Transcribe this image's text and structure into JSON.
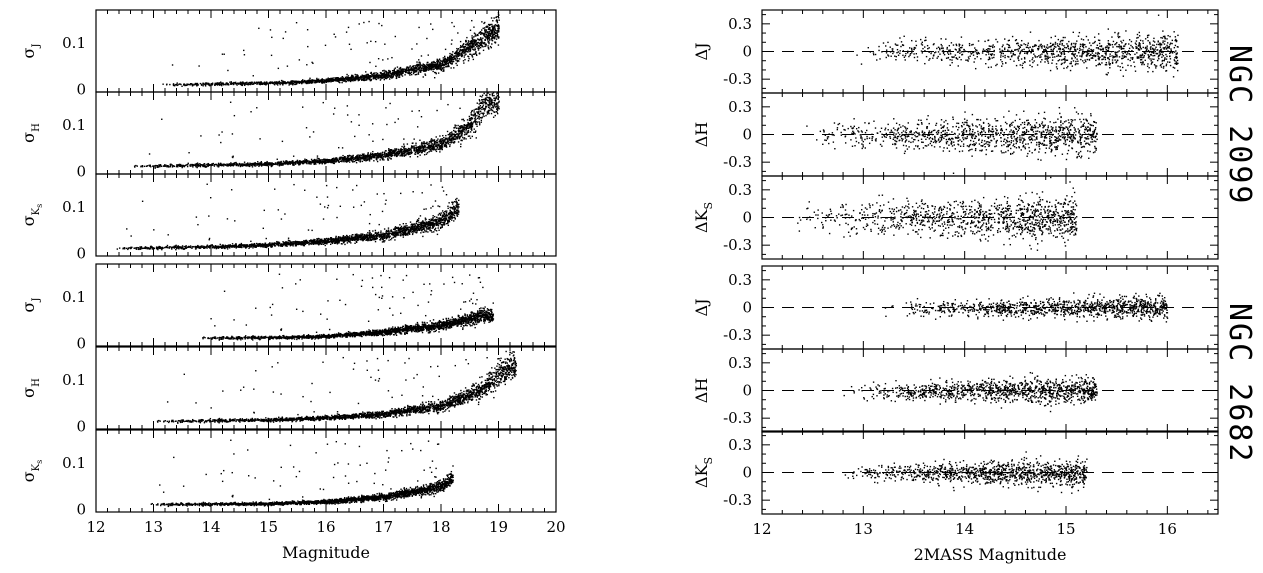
{
  "chart_data": [
    {
      "type": "scatter",
      "id": "left-figure",
      "xlabel": "Magnitude",
      "xlim": [
        12,
        20
      ],
      "xticks": [
        "12",
        "13",
        "14",
        "15",
        "16",
        "17",
        "18",
        "19",
        "20"
      ],
      "panels": [
        {
          "cluster": "NGC 2099",
          "ylabel": "σJ",
          "sub": "J",
          "yticks": [
            "0",
            "0.1"
          ],
          "ylim": [
            -0.005,
            0.17
          ],
          "series": {
            "mag_range": [
              13.1,
              19.0
            ],
            "floor": 0.012,
            "rise_at": 17.8,
            "curve": [
              [
                13.1,
                0.012
              ],
              [
                15,
                0.015
              ],
              [
                16,
                0.02
              ],
              [
                17,
                0.032
              ],
              [
                18,
                0.055
              ],
              [
                18.6,
                0.1
              ],
              [
                19.0,
                0.13
              ]
            ]
          }
        },
        {
          "cluster": "NGC 2099",
          "ylabel": "σH",
          "sub": "H",
          "yticks": [
            "0",
            "0.1"
          ],
          "ylim": [
            -0.005,
            0.17
          ],
          "series": {
            "mag_range": [
              12.6,
              19.0
            ],
            "floor": 0.012,
            "curve": [
              [
                12.6,
                0.012
              ],
              [
                15,
                0.018
              ],
              [
                16,
                0.024
              ],
              [
                17,
                0.036
              ],
              [
                18,
                0.06
              ],
              [
                18.5,
                0.1
              ],
              [
                18.8,
                0.15
              ]
            ]
          }
        },
        {
          "cluster": "NGC 2099",
          "ylabel": "σKs",
          "sub": "Ks",
          "yticks": [
            "0",
            "0.1"
          ],
          "ylim": [
            -0.005,
            0.17
          ],
          "series": {
            "mag_range": [
              12.3,
              18.3
            ],
            "floor": 0.012,
            "curve": [
              [
                12.3,
                0.012
              ],
              [
                14,
                0.016
              ],
              [
                15,
                0.02
              ],
              [
                16,
                0.028
              ],
              [
                17,
                0.04
              ],
              [
                18,
                0.07
              ],
              [
                18.3,
                0.1
              ]
            ]
          }
        },
        {
          "cluster": "NGC 2682",
          "ylabel": "σJ",
          "sub": "J",
          "yticks": [
            "0",
            "0.1"
          ],
          "ylim": [
            -0.005,
            0.17
          ],
          "series": {
            "mag_range": [
              13.8,
              18.9
            ],
            "floor": 0.013,
            "curve": [
              [
                13.8,
                0.013
              ],
              [
                15,
                0.014
              ],
              [
                16,
                0.017
              ],
              [
                17,
                0.026
              ],
              [
                18,
                0.04
              ],
              [
                18.7,
                0.06
              ]
            ]
          }
        },
        {
          "cluster": "NGC 2682",
          "ylabel": "σH",
          "sub": "H",
          "yticks": [
            "0",
            "0.1"
          ],
          "ylim": [
            -0.005,
            0.17
          ],
          "series": {
            "mag_range": [
              13.0,
              19.3
            ],
            "floor": 0.012,
            "curve": [
              [
                13.0,
                0.012
              ],
              [
                15,
                0.016
              ],
              [
                16,
                0.02
              ],
              [
                17,
                0.028
              ],
              [
                18,
                0.045
              ],
              [
                18.7,
                0.08
              ],
              [
                19.2,
                0.13
              ]
            ]
          }
        },
        {
          "cluster": "NGC 2682",
          "ylabel": "σKs",
          "sub": "Ks",
          "yticks": [
            "0",
            "0.1"
          ],
          "ylim": [
            -0.005,
            0.17
          ],
          "series": {
            "mag_range": [
              12.9,
              18.2
            ],
            "floor": 0.012,
            "curve": [
              [
                12.9,
                0.012
              ],
              [
                15,
                0.014
              ],
              [
                16,
                0.018
              ],
              [
                17,
                0.028
              ],
              [
                18,
                0.05
              ],
              [
                18.2,
                0.07
              ]
            ]
          }
        }
      ]
    },
    {
      "type": "scatter",
      "id": "right-figure",
      "xlabel": "2MASS Magnitude",
      "xlim": [
        12,
        16.5
      ],
      "xticks": [
        "12",
        "13",
        "14",
        "15",
        "16"
      ],
      "reference_line": "dashed at 0",
      "panels": [
        {
          "cluster": "NGC 2099",
          "ylabel": "ΔJ",
          "sub": "J",
          "yticks": [
            "0.3",
            "0",
            "-0.3"
          ],
          "ylim": [
            -0.45,
            0.45
          ],
          "series": {
            "mag_range": [
              12.9,
              16.1
            ],
            "scatter": 0.08
          }
        },
        {
          "cluster": "NGC 2099",
          "ylabel": "ΔH",
          "sub": "H",
          "yticks": [
            "0.3",
            "0",
            "-0.3"
          ],
          "ylim": [
            -0.45,
            0.45
          ],
          "series": {
            "mag_range": [
              12.4,
              15.3
            ],
            "scatter": 0.09
          }
        },
        {
          "cluster": "NGC 2099",
          "ylabel": "ΔKs",
          "sub": "S",
          "yticks": [
            "0.3",
            "0",
            "-0.3"
          ],
          "ylim": [
            -0.45,
            0.45
          ],
          "series": {
            "mag_range": [
              12.3,
              15.1
            ],
            "scatter": 0.1
          }
        },
        {
          "cluster": "NGC 2682",
          "ylabel": "ΔJ",
          "sub": "J",
          "yticks": [
            "0.3",
            "0",
            "-0.3"
          ],
          "ylim": [
            -0.45,
            0.45
          ],
          "series": {
            "mag_range": [
              13.2,
              16.0
            ],
            "scatter": 0.05
          }
        },
        {
          "cluster": "NGC 2682",
          "ylabel": "ΔH",
          "sub": "H",
          "yticks": [
            "0.3",
            "0",
            "-0.3"
          ],
          "ylim": [
            -0.45,
            0.45
          ],
          "series": {
            "mag_range": [
              12.8,
              15.3
            ],
            "scatter": 0.06
          }
        },
        {
          "cluster": "NGC 2682",
          "ylabel": "ΔKs",
          "sub": "S",
          "yticks": [
            "0.3",
            "0",
            "-0.3"
          ],
          "ylim": [
            -0.45,
            0.45
          ],
          "series": {
            "mag_range": [
              12.8,
              15.2
            ],
            "scatter": 0.06
          }
        }
      ]
    }
  ],
  "cluster_labels": [
    "NGC 2099",
    "NGC 2682"
  ]
}
